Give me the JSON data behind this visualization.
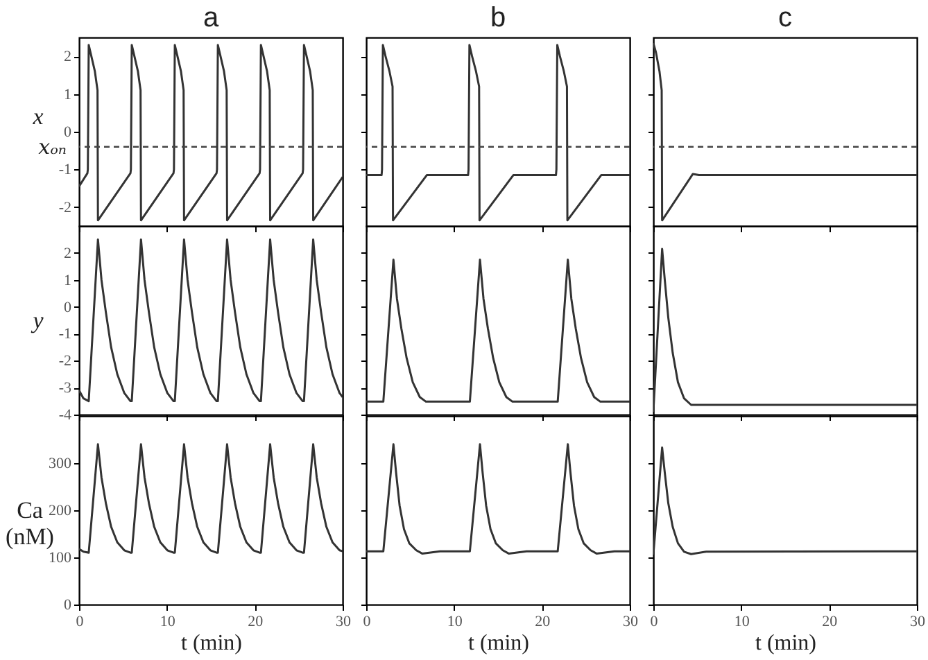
{
  "chart_data": [
    {
      "type": "line",
      "title": "a",
      "ylabel": "x",
      "tick_labels": "y",
      "color": "#333333",
      "xlim": [
        0,
        30
      ],
      "xticks": [
        0,
        10,
        20,
        30
      ],
      "ylim": [
        -2.5,
        2.5
      ],
      "yticks": [
        -2,
        -1,
        0,
        1,
        2
      ],
      "ref_lines": [
        {
          "axis": "y",
          "value": -0.4,
          "label": "xₒₙ",
          "line_style": "dashed",
          "color": "#444444"
        }
      ],
      "x": [
        0,
        0.95,
        1.0,
        1.1,
        1.4,
        1.8,
        2.1,
        2.15,
        5.85,
        5.9,
        6.0,
        6.3,
        6.7,
        7.0,
        7.05,
        10.75,
        10.8,
        10.9,
        11.2,
        11.6,
        11.9,
        11.95,
        15.65,
        15.7,
        15.8,
        16.1,
        16.5,
        16.8,
        16.85,
        20.55,
        20.6,
        20.7,
        21.0,
        21.4,
        21.7,
        21.75,
        25.45,
        25.5,
        25.6,
        25.9,
        26.3,
        26.6,
        26.65,
        30
      ],
      "values": [
        -1.45,
        -1.1,
        -1.0,
        2.3,
        2.0,
        1.6,
        1.1,
        -2.35,
        -1.1,
        -1.0,
        2.3,
        2.0,
        1.6,
        1.1,
        -2.35,
        -1.1,
        -1.0,
        2.3,
        2.0,
        1.6,
        1.1,
        -2.35,
        -1.1,
        -1.0,
        2.3,
        2.0,
        1.6,
        1.1,
        -2.35,
        -1.1,
        -1.0,
        2.3,
        2.0,
        1.6,
        1.1,
        -2.35,
        -1.1,
        -1.0,
        2.3,
        2.0,
        1.6,
        1.1,
        -2.35,
        -1.2
      ]
    },
    {
      "type": "line",
      "title": "b",
      "tick_labels": false,
      "color": "#333333",
      "xlim": [
        0,
        30
      ],
      "xticks": [
        0,
        10,
        20,
        30
      ],
      "ylim": [
        -2.5,
        2.5
      ],
      "yticks": [
        -2,
        -1,
        0,
        1,
        2
      ],
      "ref_lines": [
        {
          "axis": "y",
          "value": -0.4,
          "line_style": "dashed",
          "color": "#444444"
        }
      ],
      "x": [
        0,
        1.75,
        1.8,
        1.9,
        2.2,
        2.65,
        3.0,
        3.05,
        6.9,
        11.6,
        11.65,
        11.75,
        12.05,
        12.5,
        12.85,
        12.9,
        16.75,
        21.6,
        21.65,
        21.75,
        22.05,
        22.5,
        22.85,
        22.9,
        26.75,
        30
      ],
      "values": [
        -1.15,
        -1.15,
        -1.0,
        2.3,
        2.0,
        1.6,
        1.2,
        -2.35,
        -1.15,
        -1.15,
        -1.0,
        2.3,
        2.0,
        1.6,
        1.2,
        -2.35,
        -1.15,
        -1.15,
        -1.0,
        2.3,
        2.0,
        1.6,
        1.2,
        -2.35,
        -1.15,
        -1.15
      ]
    },
    {
      "type": "line",
      "title": "c",
      "tick_labels": false,
      "color": "#333333",
      "xlim": [
        0,
        30
      ],
      "xticks": [
        0,
        10,
        20,
        30
      ],
      "ylim": [
        -2.5,
        2.5
      ],
      "yticks": [
        -2,
        -1,
        0,
        1,
        2
      ],
      "ref_lines": [
        {
          "axis": "y",
          "value": -0.4,
          "line_style": "dashed",
          "color": "#444444"
        }
      ],
      "x": [
        0,
        0.3,
        0.7,
        0.95,
        1.0,
        4.5,
        5.2,
        30
      ],
      "values": [
        2.35,
        2.1,
        1.6,
        1.1,
        -2.35,
        -1.12,
        -1.15,
        -1.15
      ]
    },
    {
      "type": "line",
      "ylabel": "y",
      "tick_labels": "y",
      "color": "#333333",
      "xlim": [
        0,
        30
      ],
      "xticks": [
        0,
        10,
        20,
        30
      ],
      "ylim": [
        -4,
        3
      ],
      "yticks": [
        -4,
        -3,
        -2,
        -1,
        0,
        1,
        2
      ],
      "x": [
        0,
        0.5,
        1.1,
        2.15,
        2.55,
        3.05,
        3.65,
        4.35,
        5.15,
        5.85,
        6.0,
        7.05,
        7.45,
        7.95,
        8.55,
        9.25,
        10.05,
        10.75,
        10.9,
        11.95,
        12.35,
        12.85,
        13.45,
        14.15,
        14.95,
        15.65,
        15.8,
        16.85,
        17.25,
        17.75,
        18.35,
        19.05,
        19.85,
        20.55,
        20.7,
        21.75,
        22.15,
        22.65,
        23.25,
        23.95,
        24.75,
        25.45,
        25.6,
        26.65,
        27.05,
        27.55,
        28.15,
        28.85,
        29.65,
        30
      ],
      "values": [
        -3.1,
        -3.4,
        -3.5,
        2.5,
        1.0,
        -0.2,
        -1.5,
        -2.5,
        -3.2,
        -3.5,
        -3.5,
        2.5,
        1.0,
        -0.2,
        -1.5,
        -2.5,
        -3.2,
        -3.5,
        -3.5,
        2.5,
        1.0,
        -0.2,
        -1.5,
        -2.5,
        -3.2,
        -3.5,
        -3.5,
        2.5,
        1.0,
        -0.2,
        -1.5,
        -2.5,
        -3.2,
        -3.5,
        -3.5,
        2.5,
        1.0,
        -0.2,
        -1.5,
        -2.5,
        -3.2,
        -3.5,
        -3.5,
        2.5,
        1.0,
        -0.2,
        -1.5,
        -2.5,
        -3.2,
        -3.35
      ]
    },
    {
      "type": "line",
      "tick_labels": false,
      "color": "#333333",
      "xlim": [
        0,
        30
      ],
      "xticks": [
        0,
        10,
        20,
        30
      ],
      "ylim": [
        -4,
        3
      ],
      "yticks": [
        -4,
        -3,
        -2,
        -1,
        0,
        1,
        2
      ],
      "x": [
        0,
        1.95,
        3.1,
        3.5,
        4.0,
        4.6,
        5.3,
        6.1,
        6.8,
        11.8,
        12.95,
        13.35,
        13.85,
        14.45,
        15.15,
        15.95,
        16.65,
        21.8,
        22.95,
        23.35,
        23.85,
        24.45,
        25.15,
        25.95,
        26.65,
        30
      ],
      "values": [
        -3.52,
        -3.52,
        1.75,
        0.3,
        -0.8,
        -1.9,
        -2.8,
        -3.35,
        -3.52,
        -3.52,
        1.75,
        0.3,
        -0.8,
        -1.9,
        -2.8,
        -3.35,
        -3.52,
        -3.52,
        1.75,
        0.3,
        -0.8,
        -1.9,
        -2.8,
        -3.35,
        -3.52,
        -3.52
      ]
    },
    {
      "type": "line",
      "tick_labels": false,
      "color": "#333333",
      "xlim": [
        0,
        30
      ],
      "xticks": [
        0,
        10,
        20,
        30
      ],
      "ylim": [
        -4,
        3
      ],
      "yticks": [
        -4,
        -3,
        -2,
        -1,
        0,
        1,
        2
      ],
      "x": [
        0,
        1.0,
        1.3,
        1.7,
        2.2,
        2.8,
        3.5,
        4.3,
        30
      ],
      "values": [
        -3.9,
        2.15,
        1.0,
        -0.4,
        -1.7,
        -2.8,
        -3.4,
        -3.64,
        -3.64
      ]
    },
    {
      "type": "line",
      "ylabel": "Ca (nM)",
      "xlabel": "t (min)",
      "color": "#333333",
      "xlim": [
        0,
        30
      ],
      "xticks": [
        0,
        10,
        20,
        30
      ],
      "ylim": [
        0,
        400
      ],
      "yticks": [
        0,
        100,
        200,
        300
      ],
      "x": [
        0,
        0.5,
        1.1,
        2.15,
        2.55,
        3.05,
        3.65,
        4.35,
        5.15,
        5.85,
        6.0,
        7.05,
        7.45,
        7.95,
        8.55,
        9.25,
        10.05,
        10.75,
        10.9,
        11.95,
        12.35,
        12.85,
        13.45,
        14.15,
        14.95,
        15.65,
        15.8,
        16.85,
        17.25,
        17.75,
        18.35,
        19.05,
        19.85,
        20.55,
        20.7,
        21.75,
        22.15,
        22.65,
        23.25,
        23.95,
        24.75,
        25.45,
        25.6,
        26.65,
        27.05,
        27.55,
        28.15,
        28.85,
        29.65,
        30
      ],
      "values": [
        118,
        112,
        110,
        340,
        270,
        215,
        165,
        132,
        115,
        110,
        110,
        340,
        270,
        215,
        165,
        132,
        115,
        110,
        110,
        340,
        270,
        215,
        165,
        132,
        115,
        110,
        110,
        340,
        270,
        215,
        165,
        132,
        115,
        110,
        110,
        340,
        270,
        215,
        165,
        132,
        115,
        110,
        110,
        340,
        270,
        215,
        165,
        132,
        115,
        113
      ]
    },
    {
      "type": "line",
      "xlabel": "t (min)",
      "tick_labels": "x",
      "color": "#333333",
      "xlim": [
        0,
        30
      ],
      "xticks": [
        0,
        10,
        20,
        30
      ],
      "ylim": [
        0,
        400
      ],
      "yticks": [
        0,
        100,
        200,
        300
      ],
      "x": [
        0,
        1.95,
        3.1,
        3.4,
        3.8,
        4.3,
        4.9,
        5.7,
        6.4,
        8.4,
        11.8,
        12.95,
        13.25,
        13.65,
        14.15,
        14.75,
        15.55,
        16.25,
        18.25,
        21.8,
        22.95,
        23.25,
        23.65,
        24.15,
        24.75,
        25.55,
        26.25,
        28.25,
        30
      ],
      "values": [
        113,
        113,
        340,
        280,
        210,
        160,
        130,
        115,
        108,
        113,
        113,
        340,
        280,
        210,
        160,
        130,
        115,
        108,
        113,
        113,
        340,
        280,
        210,
        160,
        130,
        115,
        108,
        113,
        113
      ]
    },
    {
      "type": "line",
      "xlabel": "t (min)",
      "tick_labels": "x",
      "color": "#333333",
      "xlim": [
        0,
        30
      ],
      "xticks": [
        0,
        10,
        20,
        30
      ],
      "ylim": [
        0,
        400
      ],
      "yticks": [
        0,
        100,
        200,
        300
      ],
      "x": [
        0,
        1.0,
        1.3,
        1.7,
        2.2,
        2.8,
        3.5,
        4.3,
        6,
        30
      ],
      "values": [
        106,
        333,
        280,
        215,
        165,
        130,
        112,
        107,
        112,
        113
      ]
    }
  ]
}
